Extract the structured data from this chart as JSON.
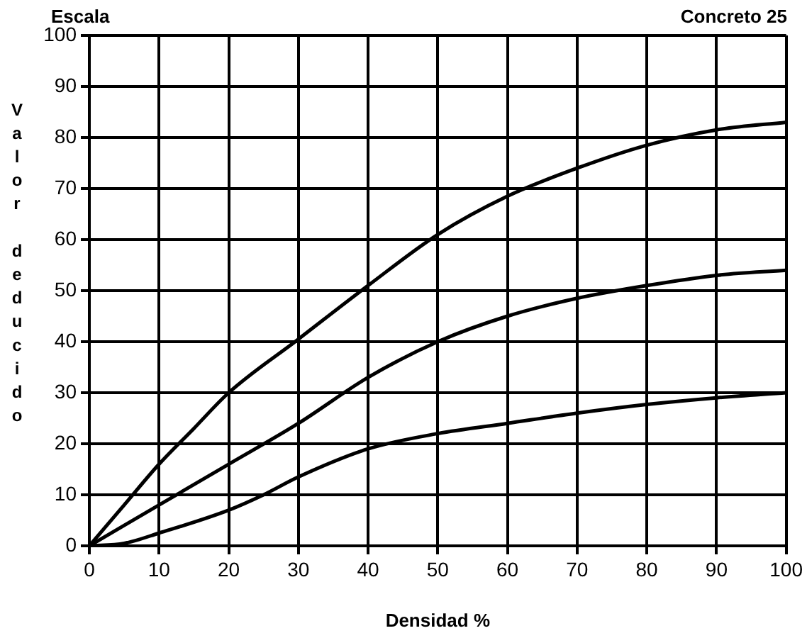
{
  "chart_data": {
    "type": "line",
    "title": "Escala",
    "subtitle": "Concreto 25",
    "xlabel": "Densidad %",
    "ylabel": "Valor deducido",
    "xlim": [
      0,
      100
    ],
    "xticks": [
      0,
      10,
      20,
      30,
      40,
      50,
      60,
      70,
      80,
      90,
      100
    ],
    "ylim": [
      0,
      100
    ],
    "yticks": [
      0,
      10,
      20,
      30,
      40,
      50,
      60,
      70,
      80,
      90,
      100
    ],
    "grid": true,
    "legend": false,
    "marker": "none",
    "line_style": "solid",
    "series": [
      {
        "color": "#000000",
        "x": [
          0,
          5,
          10,
          15,
          20,
          30,
          40,
          50,
          60,
          70,
          80,
          90,
          100
        ],
        "values": [
          0,
          8,
          16,
          23,
          30,
          40.5,
          51,
          61,
          68.5,
          74,
          78.5,
          81.5,
          83
        ]
      },
      {
        "color": "#000000",
        "x": [
          0,
          10,
          20,
          30,
          40,
          50,
          60,
          70,
          80,
          90,
          100
        ],
        "values": [
          0,
          8,
          16,
          24,
          33,
          40,
          45,
          48.5,
          51,
          53,
          54
        ]
      },
      {
        "color": "#000000",
        "x": [
          0,
          5,
          10,
          20,
          25,
          30,
          40,
          50,
          60,
          70,
          80,
          90,
          100
        ],
        "values": [
          0,
          0.5,
          2.5,
          7,
          10,
          13.5,
          19,
          22,
          24,
          26,
          27.7,
          29,
          30
        ]
      }
    ]
  }
}
